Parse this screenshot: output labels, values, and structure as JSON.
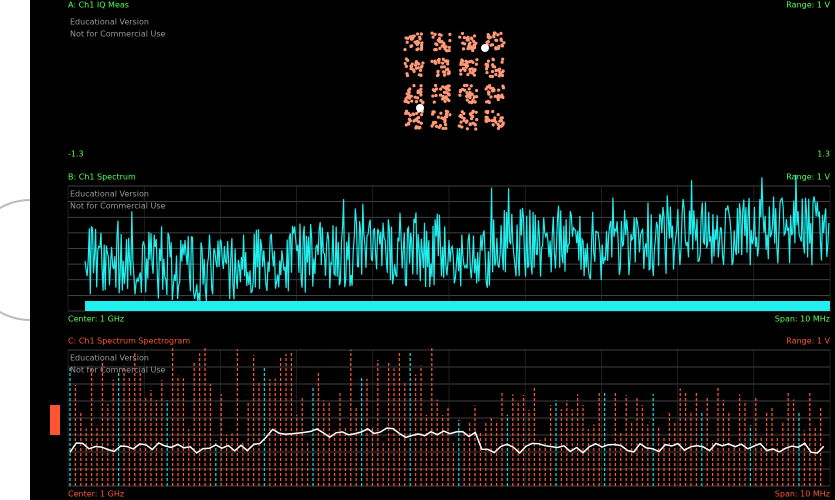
{
  "panels": [
    {
      "header": "A: Ch1 IQ Meas",
      "range": "Range: 1 V",
      "watermark": [
        "Educational Version",
        "Not for Commercial Use"
      ],
      "footer_left": "-1.3",
      "footer_right": "1.3"
    },
    {
      "header": "B: Ch1 Spectrum",
      "range": "Range: 1 V",
      "watermark": [
        "Educational Version",
        "Not for Commercial Use"
      ],
      "footer_left": "Center: 1 GHz",
      "footer_right": "Span: 10 MHz"
    },
    {
      "header": "C: Ch1 Spectrum Spectrogram",
      "range": "Range: 1 V",
      "watermark": [
        "Educational Version",
        "Not for Commercial Use"
      ],
      "footer_left": "Center: 1 GHz",
      "footer_right": "Span: 10 MHz"
    }
  ]
}
